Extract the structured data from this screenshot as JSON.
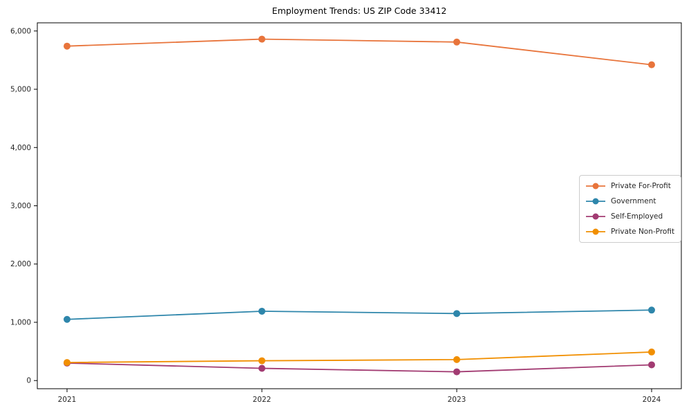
{
  "chart_data": {
    "type": "line",
    "title": "Employment Trends: US ZIP Code 33412",
    "xlabel": "",
    "ylabel": "",
    "categories": [
      "2021",
      "2022",
      "2023",
      "2024"
    ],
    "series": [
      {
        "name": "Private For-Profit",
        "color": "#E8743B",
        "values": [
          5740,
          5860,
          5810,
          5420
        ]
      },
      {
        "name": "Government",
        "color": "#2E86AB",
        "values": [
          1050,
          1190,
          1150,
          1210
        ]
      },
      {
        "name": "Self-Employed",
        "color": "#A23B72",
        "values": [
          300,
          210,
          150,
          270
        ]
      },
      {
        "name": "Private Non-Profit",
        "color": "#F18F01",
        "values": [
          310,
          340,
          360,
          490
        ]
      }
    ],
    "y_ticks": [
      {
        "value": 0,
        "label": "0"
      },
      {
        "value": 1000,
        "label": "1,000"
      },
      {
        "value": 2000,
        "label": "2,000"
      },
      {
        "value": 3000,
        "label": "3,000"
      },
      {
        "value": 4000,
        "label": "4,000"
      },
      {
        "value": 5000,
        "label": "5,000"
      },
      {
        "value": 6000,
        "label": "6,000"
      }
    ],
    "ylim": [
      -140,
      6140
    ],
    "grid": false,
    "legend_position": "center-right",
    "marker": "circle"
  }
}
